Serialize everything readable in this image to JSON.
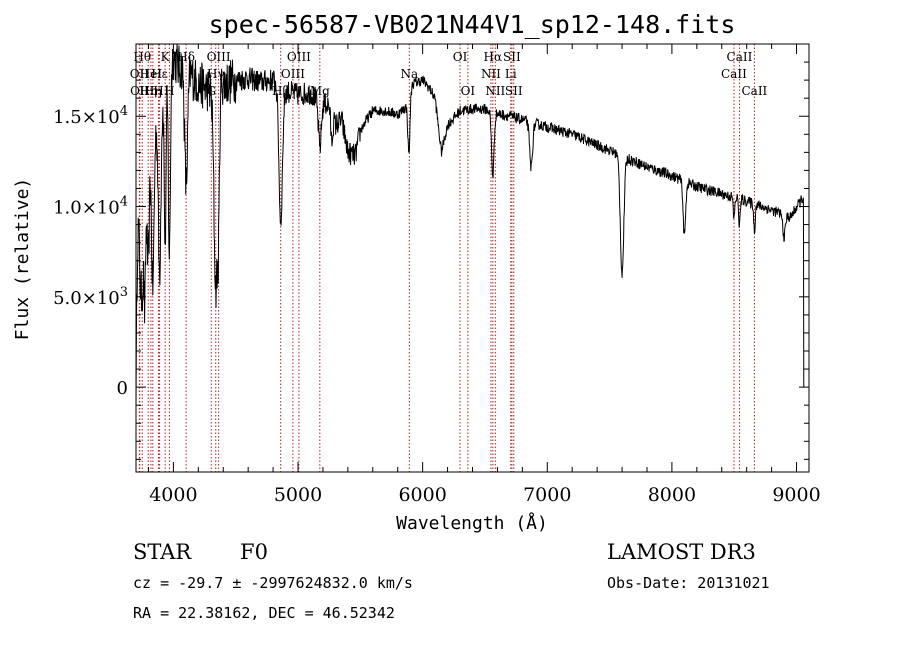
{
  "chart_data": {
    "type": "line",
    "title": "spec-56587-VB021N44V1_sp12-148.fits",
    "xlabel": "Wavelength (Å)",
    "ylabel": "Flux (relative)",
    "xlim": [
      3700,
      9100
    ],
    "ylim": [
      -4700,
      19000
    ],
    "x_ticks": [
      4000,
      5000,
      6000,
      7000,
      8000,
      9000
    ],
    "x_tick_labels": [
      "4000",
      "5000",
      "6000",
      "7000",
      "8000",
      "9000"
    ],
    "y_ticks": [
      0,
      5000,
      10000,
      15000
    ],
    "y_tick_labels": [
      {
        "mantissa": "0",
        "exponent": ""
      },
      {
        "mantissa": "5.0×10",
        "exponent": "3"
      },
      {
        "mantissa": "1.0×10",
        "exponent": "4"
      },
      {
        "mantissa": "1.5×10",
        "exponent": "4"
      }
    ],
    "spectrum_anchors": [
      [
        3700,
        0
      ],
      [
        3712,
        8000
      ],
      [
        3730,
        12500
      ],
      [
        3750,
        13500
      ],
      [
        3770,
        11000
      ],
      [
        3800,
        14000
      ],
      [
        3830,
        12800
      ],
      [
        3860,
        14500
      ],
      [
        3900,
        15500
      ],
      [
        3930,
        16200
      ],
      [
        3950,
        17000
      ],
      [
        3970,
        17800
      ],
      [
        4000,
        18300
      ],
      [
        4050,
        17600
      ],
      [
        4100,
        18200
      ],
      [
        4150,
        17200
      ],
      [
        4200,
        16800
      ],
      [
        4250,
        16600
      ],
      [
        4300,
        16400
      ],
      [
        4330,
        16000
      ],
      [
        4380,
        16800
      ],
      [
        4450,
        16900
      ],
      [
        4500,
        17000
      ],
      [
        4600,
        17100
      ],
      [
        4700,
        16900
      ],
      [
        4800,
        17000
      ],
      [
        4850,
        16700
      ],
      [
        4900,
        16400
      ],
      [
        4950,
        16300
      ],
      [
        5000,
        16200
      ],
      [
        5100,
        16300
      ],
      [
        5170,
        15800
      ],
      [
        5250,
        15600
      ],
      [
        5300,
        14500
      ],
      [
        5350,
        14800
      ],
      [
        5400,
        13000
      ],
      [
        5460,
        12800
      ],
      [
        5500,
        14200
      ],
      [
        5550,
        14800
      ],
      [
        5600,
        15300
      ],
      [
        5700,
        15300
      ],
      [
        5800,
        15100
      ],
      [
        5880,
        15600
      ],
      [
        5920,
        16800
      ],
      [
        6000,
        17000
      ],
      [
        6050,
        16600
      ],
      [
        6100,
        16000
      ],
      [
        6150,
        13000
      ],
      [
        6200,
        14500
      ],
      [
        6300,
        15300
      ],
      [
        6400,
        15400
      ],
      [
        6500,
        15400
      ],
      [
        6560,
        15200
      ],
      [
        6700,
        15000
      ],
      [
        6800,
        14800
      ],
      [
        7000,
        14400
      ],
      [
        7200,
        14000
      ],
      [
        7400,
        13400
      ],
      [
        7600,
        12800
      ],
      [
        7800,
        12200
      ],
      [
        8000,
        11700
      ],
      [
        8200,
        11100
      ],
      [
        8400,
        10700
      ],
      [
        8600,
        10300
      ],
      [
        8800,
        9800
      ],
      [
        8950,
        9400
      ],
      [
        9050,
        10500
      ]
    ],
    "absorption_dips": [
      [
        3734,
        8,
        6000
      ],
      [
        3750,
        8,
        7000
      ],
      [
        3770,
        8,
        6500
      ],
      [
        3798,
        9,
        7000
      ],
      [
        3835,
        10,
        7500
      ],
      [
        3889,
        10,
        9000
      ],
      [
        3934,
        7,
        8500
      ],
      [
        3968,
        8,
        10500
      ],
      [
        4102,
        12,
        7000
      ],
      [
        4340,
        14,
        10500
      ],
      [
        4362,
        8,
        6000
      ],
      [
        4861,
        14,
        7500
      ],
      [
        5175,
        12,
        2500
      ],
      [
        5270,
        8,
        1500
      ],
      [
        5890,
        8,
        3000
      ],
      [
        6563,
        10,
        3500
      ],
      [
        6870,
        12,
        2500
      ],
      [
        7600,
        14,
        6500
      ],
      [
        8100,
        10,
        3000
      ],
      [
        8498,
        6,
        1200
      ],
      [
        8542,
        6,
        1500
      ],
      [
        8662,
        6,
        1500
      ],
      [
        8900,
        10,
        1200
      ]
    ],
    "jump_to_zero_at": 9055,
    "line_markers": [
      {
        "x": 3727,
        "row": 1,
        "label": "OII"
      },
      {
        "x": 3730,
        "row": 2,
        "label": "OII"
      },
      {
        "x": 3750,
        "row": 0,
        "label": "Hθ"
      },
      {
        "x": 3798,
        "row": 2,
        "label": "Hη"
      },
      {
        "x": 3820,
        "row": 1,
        "label": "HeI"
      },
      {
        "x": 3835,
        "row": 2,
        "label": "Hη"
      },
      {
        "x": 3880,
        "row": 2,
        "label": "H"
      },
      {
        "x": 3889,
        "row": 1,
        "label": "Hε"
      },
      {
        "x": 3934,
        "row": 0,
        "label": "K"
      },
      {
        "x": 3968,
        "row": 2,
        "label": "H"
      },
      {
        "x": 4102,
        "row": 0,
        "label": "Hδ"
      },
      {
        "x": 4304,
        "row": 2,
        "label": "G"
      },
      {
        "x": 4340,
        "row": 1,
        "label": "Hγ"
      },
      {
        "x": 4363,
        "row": 0,
        "label": "OIII"
      },
      {
        "x": 4861,
        "row": 2,
        "label": "Hβ"
      },
      {
        "x": 4959,
        "row": 1,
        "label": "OIII"
      },
      {
        "x": 5007,
        "row": 0,
        "label": "OIII"
      },
      {
        "x": 5175,
        "row": 2,
        "label": "Mg"
      },
      {
        "x": 5893,
        "row": 1,
        "label": "Na"
      },
      {
        "x": 6300,
        "row": 0,
        "label": "OI"
      },
      {
        "x": 6363,
        "row": 2,
        "label": "OI"
      },
      {
        "x": 6548,
        "row": 1,
        "label": "NII"
      },
      {
        "x": 6563,
        "row": 0,
        "label": "Hα"
      },
      {
        "x": 6583,
        "row": 2,
        "label": "NII"
      },
      {
        "x": 6707,
        "row": 1,
        "label": "Li"
      },
      {
        "x": 6716,
        "row": 0,
        "label": "SII"
      },
      {
        "x": 6731,
        "row": 2,
        "label": "SII"
      },
      {
        "x": 8498,
        "row": 1,
        "label": "CaII"
      },
      {
        "x": 8542,
        "row": 0,
        "label": "CaII"
      },
      {
        "x": 8662,
        "row": 2,
        "label": "CaII"
      }
    ]
  },
  "info": {
    "object_class": "STAR",
    "subclass": "F0",
    "survey": "LAMOST DR3",
    "redshift_line": "cz = -29.7 ± -2997624832.0 km/s",
    "obs_date_line": "Obs-Date: 20131021",
    "coords_line": "RA =  22.38162, DEC =  46.52342"
  },
  "colors": {
    "axes": "#000000",
    "spectrum": "#000000",
    "marker_line": "#b22222",
    "background": "#ffffff"
  }
}
